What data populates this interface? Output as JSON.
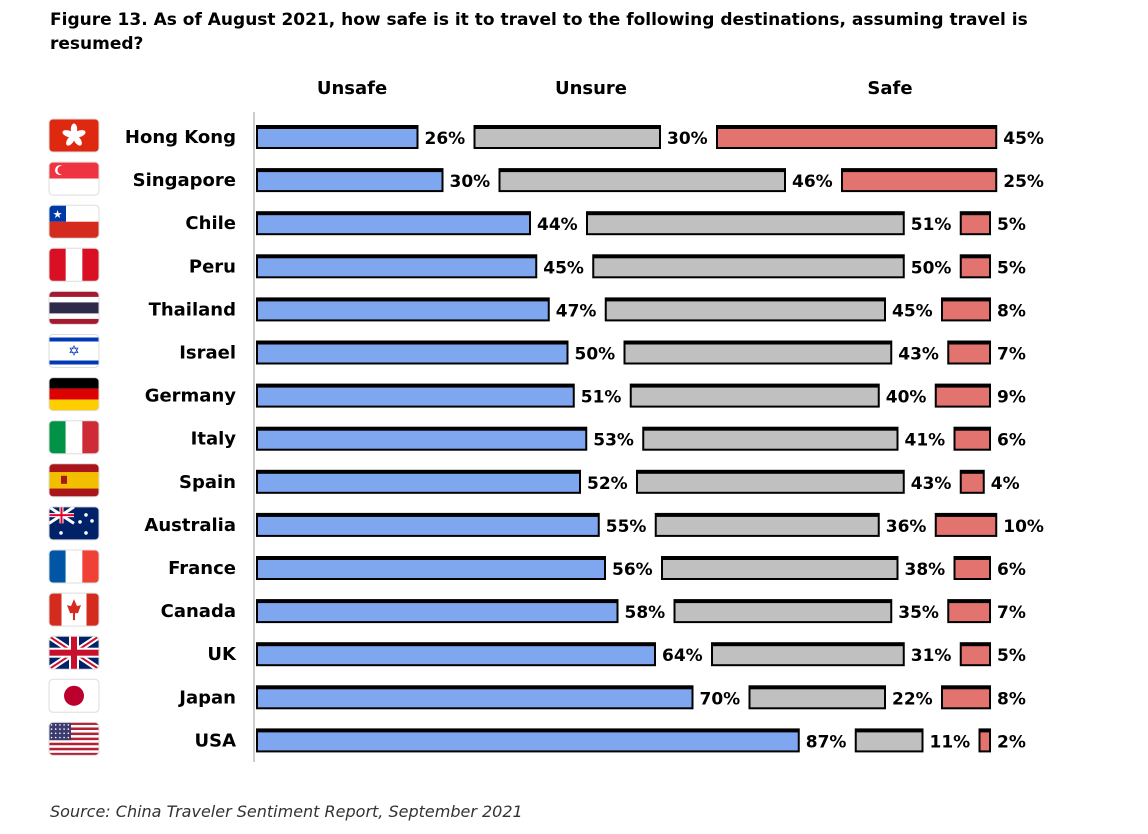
{
  "title": "Figure 13. As of August 2021, how safe is it to travel to the following destinations, assuming travel is resumed?",
  "source": "Source: China Traveler Sentiment Report, September 2021",
  "colors": {
    "unsafe": "#7FA7EF",
    "unsure": "#C0C0C0",
    "safe": "#E2736E",
    "outline": "#000000"
  },
  "chart_data": {
    "type": "bar",
    "orientation": "horizontal",
    "stacked": true,
    "unit": "%",
    "headers": [
      "Unsafe",
      "Unsure",
      "Safe"
    ],
    "categories": [
      "Hong Kong",
      "Singapore",
      "Chile",
      "Peru",
      "Thailand",
      "Israel",
      "Germany",
      "Italy",
      "Spain",
      "Australia",
      "France",
      "Canada",
      "UK",
      "Japan",
      "USA"
    ],
    "flag_icons": [
      "hong-kong-flag-icon",
      "singapore-flag-icon",
      "chile-flag-icon",
      "peru-flag-icon",
      "thailand-flag-icon",
      "israel-flag-icon",
      "germany-flag-icon",
      "italy-flag-icon",
      "spain-flag-icon",
      "australia-flag-icon",
      "france-flag-icon",
      "canada-flag-icon",
      "uk-flag-icon",
      "japan-flag-icon",
      "usa-flag-icon"
    ],
    "series": [
      {
        "name": "Unsafe",
        "values": [
          26,
          30,
          44,
          45,
          47,
          50,
          51,
          53,
          52,
          55,
          56,
          58,
          64,
          70,
          87
        ]
      },
      {
        "name": "Unsure",
        "values": [
          30,
          46,
          51,
          50,
          45,
          43,
          40,
          41,
          43,
          36,
          38,
          35,
          31,
          22,
          11
        ]
      },
      {
        "name": "Safe",
        "values": [
          45,
          25,
          5,
          5,
          8,
          7,
          9,
          6,
          4,
          10,
          6,
          7,
          5,
          8,
          2
        ]
      }
    ]
  }
}
